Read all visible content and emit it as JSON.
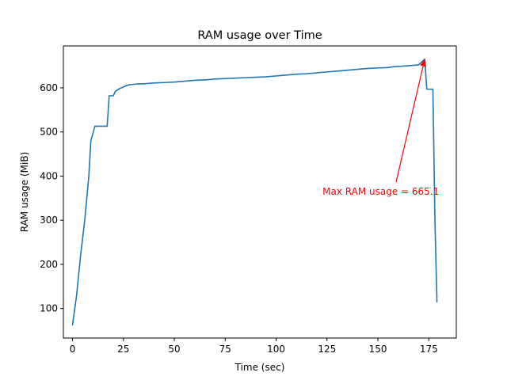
{
  "chart_data": {
    "type": "line",
    "title": "RAM usage over Time",
    "xlabel": "Time (sec)",
    "ylabel": "RAM usage (MiB)",
    "xlim": [
      -4.5,
      188.5
    ],
    "ylim": [
      33,
      695
    ],
    "xticks": [
      0,
      25,
      50,
      75,
      100,
      125,
      150,
      175
    ],
    "yticks": [
      100,
      200,
      300,
      400,
      500,
      600
    ],
    "grid": false,
    "series": [
      {
        "color": "#1f77b4",
        "x": [
          0,
          2,
          4,
          6,
          8,
          9,
          11,
          13,
          15,
          17,
          18,
          20,
          21,
          23,
          25,
          27,
          28,
          30,
          32,
          35,
          37,
          40,
          45,
          50,
          55,
          60,
          65,
          70,
          75,
          80,
          85,
          90,
          95,
          100,
          105,
          108,
          110,
          115,
          120,
          125,
          130,
          135,
          140,
          145,
          150,
          155,
          158,
          165,
          170,
          173,
          174,
          177,
          178,
          179
        ],
        "y": [
          63,
          130,
          222,
          300,
          400,
          480,
          513,
          513,
          513,
          513,
          582,
          582,
          592,
          598,
          602,
          606,
          607,
          608,
          609,
          609,
          610,
          611,
          612,
          613,
          615,
          617,
          618,
          620,
          621,
          622,
          623,
          624,
          625,
          627,
          629,
          630,
          631,
          632,
          634,
          636,
          638,
          640,
          642,
          644,
          645,
          646,
          648,
          650,
          652,
          665.1,
          597,
          597,
          300,
          115
        ]
      }
    ],
    "annotation": {
      "text": "Max RAM usage = 665.1",
      "color": "#ff0000",
      "xy": [
        173,
        665.1
      ],
      "xytext": [
        122.8,
        365
      ]
    }
  }
}
